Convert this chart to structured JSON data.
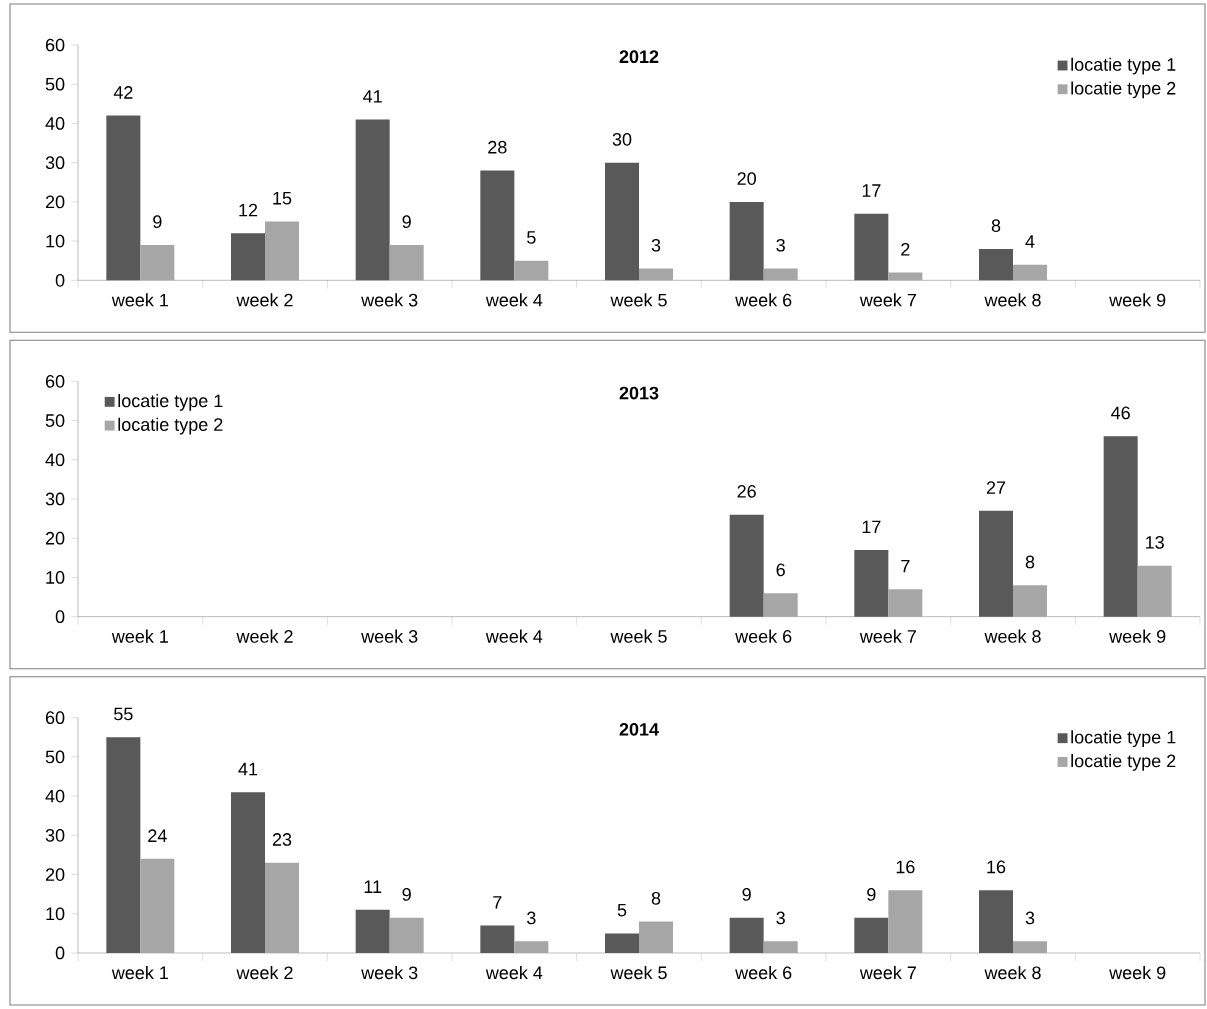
{
  "chart_data": [
    {
      "type": "bar",
      "title": "**2012**",
      "categories": [
        "week 1",
        "week 2",
        "week 3",
        "week 4",
        "week 5",
        "week 6",
        "week 7",
        "week 8",
        "week 9"
      ],
      "series": [
        {
          "name": "locatie type 1",
          "color": "#595959",
          "values": [
            42,
            12,
            41,
            28,
            30,
            20,
            17,
            8,
            null
          ]
        },
        {
          "name": "locatie type 2",
          "color": "#a6a6a6",
          "values": [
            9,
            15,
            9,
            5,
            3,
            3,
            2,
            4,
            null
          ]
        }
      ],
      "ylim": [
        0,
        60
      ],
      "yticks": [
        0,
        10,
        20,
        30,
        40,
        50,
        60
      ],
      "legend": "top right",
      "data_labels": true
    },
    {
      "type": "bar",
      "title": "**2013**",
      "categories": [
        "week 1",
        "week 2",
        "week 3",
        "week 4",
        "week 5",
        "week 6",
        "week 7",
        "week 8",
        "week 9"
      ],
      "series": [
        {
          "name": "locatie type 1",
          "color": "#595959",
          "values": [
            null,
            null,
            null,
            null,
            null,
            26,
            17,
            27,
            46
          ]
        },
        {
          "name": "locatie type 2",
          "color": "#a6a6a6",
          "values": [
            null,
            null,
            null,
            null,
            null,
            6,
            7,
            8,
            13
          ]
        }
      ],
      "ylim": [
        0,
        60
      ],
      "yticks": [
        0,
        10,
        20,
        30,
        40,
        50,
        60
      ],
      "legend": "top left",
      "data_labels": true
    },
    {
      "type": "bar",
      "title": "**2014**",
      "categories": [
        "week 1",
        "week 2",
        "week 3",
        "week 4",
        "week 5",
        "week 6",
        "week 7",
        "week 8",
        "week 9"
      ],
      "series": [
        {
          "name": "locatie type 1",
          "color": "#595959",
          "values": [
            55,
            41,
            11,
            7,
            5,
            9,
            9,
            16,
            null
          ]
        },
        {
          "name": "locatie type 2",
          "color": "#a6a6a6",
          "values": [
            24,
            23,
            9,
            3,
            8,
            3,
            16,
            3,
            null
          ]
        }
      ],
      "ylim": [
        0,
        60
      ],
      "yticks": [
        0,
        10,
        20,
        30,
        40,
        50,
        60
      ],
      "legend": "top right",
      "data_labels": true
    }
  ]
}
